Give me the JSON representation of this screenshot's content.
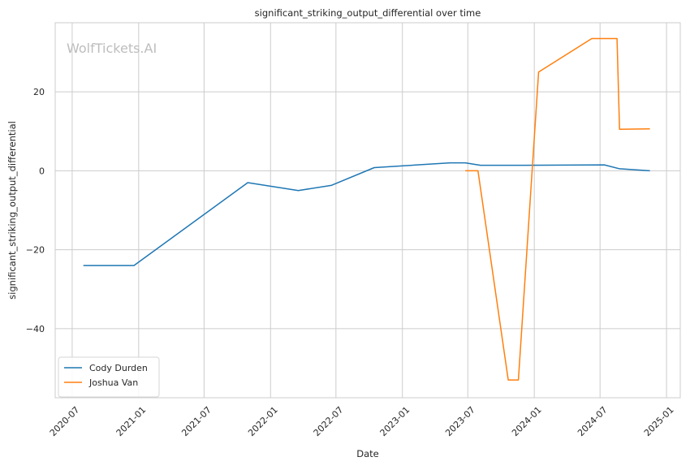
{
  "chart_data": {
    "type": "line",
    "title": "significant_striking_output_differential over time",
    "xlabel": "Date",
    "ylabel": "significant_striking_output_differential",
    "watermark": "WolfTickets.AI",
    "x_ticks": [
      "2020-07",
      "2021-01",
      "2021-07",
      "2022-01",
      "2022-07",
      "2023-01",
      "2023-07",
      "2024-01",
      "2024-07",
      "2025-01"
    ],
    "y_ticks": [
      20,
      0,
      -20,
      -40
    ],
    "y_tick_labels": [
      "20",
      "0",
      "−20",
      "−40"
    ],
    "xlim": [
      "2020-05-15",
      "2025-02-08"
    ],
    "ylim": [
      -57.5,
      37.5
    ],
    "grid": true,
    "legend_position": "bottom-left",
    "series": [
      {
        "name": "Cody Durden",
        "color": "#1f77b4",
        "points": [
          {
            "date": "2020-08-01",
            "value": -24
          },
          {
            "date": "2020-12-19",
            "value": -24
          },
          {
            "date": "2021-10-30",
            "value": -3
          },
          {
            "date": "2022-03-19",
            "value": -5
          },
          {
            "date": "2022-06-18",
            "value": -3.7
          },
          {
            "date": "2022-10-15",
            "value": 0.8
          },
          {
            "date": "2023-05-13",
            "value": 2.0
          },
          {
            "date": "2023-06-24",
            "value": 2.0
          },
          {
            "date": "2023-08-05",
            "value": 1.4
          },
          {
            "date": "2023-12-02",
            "value": 1.4
          },
          {
            "date": "2024-07-13",
            "value": 1.5
          },
          {
            "date": "2024-08-24",
            "value": 0.5
          },
          {
            "date": "2024-11-16",
            "value": 0
          }
        ]
      },
      {
        "name": "Joshua Van",
        "color": "#ff7f0e",
        "points": [
          {
            "date": "2023-06-24",
            "value": 0
          },
          {
            "date": "2023-07-29",
            "value": 0
          },
          {
            "date": "2023-10-21",
            "value": -53
          },
          {
            "date": "2023-11-18",
            "value": -53
          },
          {
            "date": "2024-01-13",
            "value": 25
          },
          {
            "date": "2024-06-08",
            "value": 33.5
          },
          {
            "date": "2024-08-17",
            "value": 33.5
          },
          {
            "date": "2024-08-24",
            "value": 10.5
          },
          {
            "date": "2024-11-16",
            "value": 10.6
          }
        ]
      }
    ]
  }
}
